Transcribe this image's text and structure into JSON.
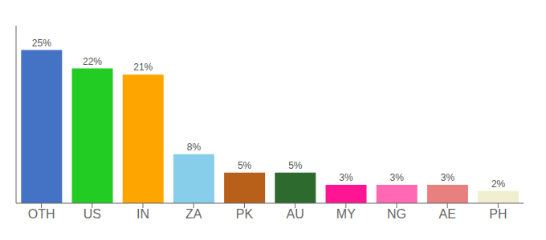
{
  "chart_data": {
    "type": "bar",
    "categories": [
      "OTH",
      "US",
      "IN",
      "ZA",
      "PK",
      "AU",
      "MY",
      "NG",
      "AE",
      "PH"
    ],
    "values": [
      25,
      22,
      21,
      8,
      5,
      5,
      3,
      3,
      3,
      2
    ],
    "value_labels": [
      "25%",
      "22%",
      "21%",
      "8%",
      "5%",
      "5%",
      "3%",
      "3%",
      "3%",
      "2%"
    ],
    "data_labels": true,
    "colors": [
      "#4472c4",
      "#22cc22",
      "#ffa500",
      "#87ceeb",
      "#b8601a",
      "#2d6a2d",
      "#ff1493",
      "#ff69b4",
      "#e88080",
      "#f0f0d0"
    ],
    "ylim": [
      0,
      29
    ],
    "grid": false,
    "tick_labels": "x"
  }
}
